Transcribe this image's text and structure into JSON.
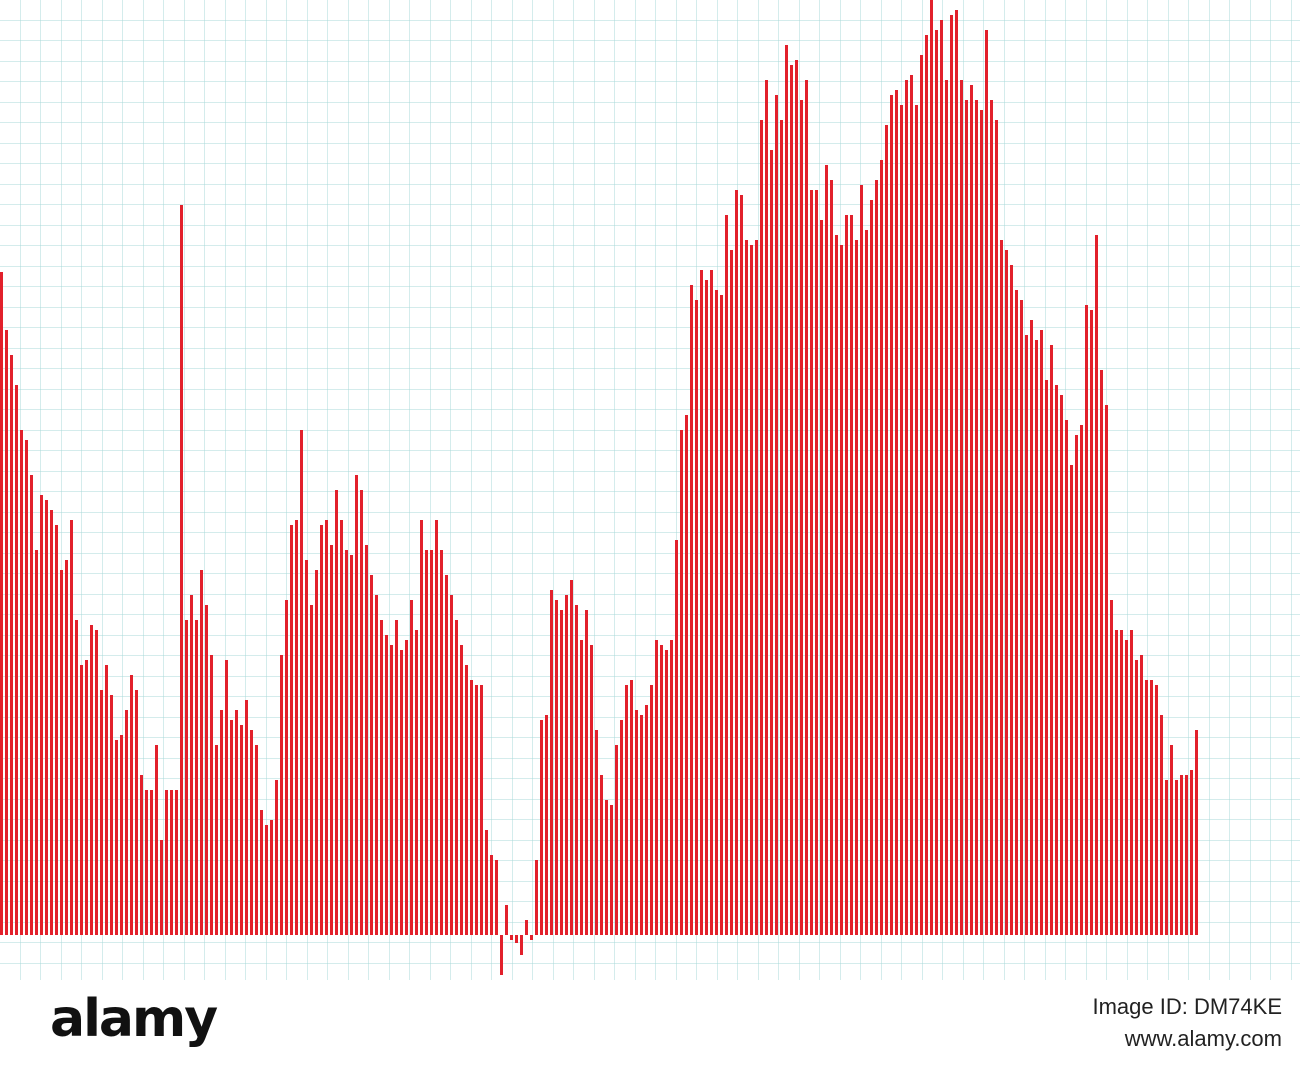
{
  "chart_data": {
    "type": "bar",
    "color": "#e2202b",
    "ylim": [
      -45,
      935
    ],
    "values": [
      663,
      605,
      580,
      550,
      505,
      495,
      460,
      385,
      440,
      435,
      425,
      410,
      365,
      375,
      415,
      315,
      270,
      275,
      310,
      305,
      245,
      270,
      240,
      195,
      200,
      225,
      260,
      245,
      160,
      145,
      145,
      190,
      95,
      145,
      145,
      145,
      730,
      315,
      340,
      315,
      365,
      330,
      280,
      190,
      225,
      275,
      215,
      225,
      210,
      235,
      205,
      190,
      125,
      110,
      115,
      155,
      280,
      335,
      410,
      415,
      505,
      375,
      330,
      365,
      410,
      415,
      390,
      445,
      415,
      385,
      380,
      460,
      445,
      390,
      360,
      340,
      315,
      300,
      290,
      315,
      285,
      295,
      335,
      305,
      415,
      385,
      385,
      415,
      385,
      360,
      340,
      315,
      290,
      270,
      255,
      250,
      250,
      105,
      80,
      75,
      -40,
      30,
      -5,
      -8,
      -20,
      15,
      -5,
      75,
      215,
      220,
      345,
      335,
      325,
      340,
      355,
      330,
      295,
      325,
      290,
      205,
      160,
      135,
      130,
      190,
      215,
      250,
      255,
      225,
      220,
      230,
      250,
      295,
      290,
      285,
      295,
      395,
      505,
      520,
      650,
      635,
      665,
      655,
      665,
      645,
      640,
      720,
      685,
      745,
      740,
      695,
      690,
      695,
      815,
      855,
      785,
      840,
      815,
      890,
      870,
      875,
      835,
      855,
      745,
      745,
      715,
      770,
      755,
      700,
      690,
      720,
      720,
      695,
      750,
      705,
      735,
      755,
      775,
      810,
      840,
      845,
      830,
      855,
      860,
      830,
      880,
      900,
      935,
      905,
      915,
      855,
      920,
      925,
      855,
      835,
      850,
      835,
      825,
      905,
      835,
      815,
      695,
      685,
      670,
      645,
      635,
      600,
      615,
      595,
      605,
      555,
      590,
      550,
      540,
      515,
      470,
      500,
      510,
      630,
      625,
      700,
      565,
      530,
      335,
      305,
      305,
      295,
      305,
      275,
      280,
      255,
      255,
      250,
      220,
      155,
      190,
      155,
      160,
      160,
      165,
      205
    ]
  },
  "footer": {
    "logo": "alamy",
    "image_id": "Image ID: DM74KE",
    "url": "www.alamy.com"
  }
}
